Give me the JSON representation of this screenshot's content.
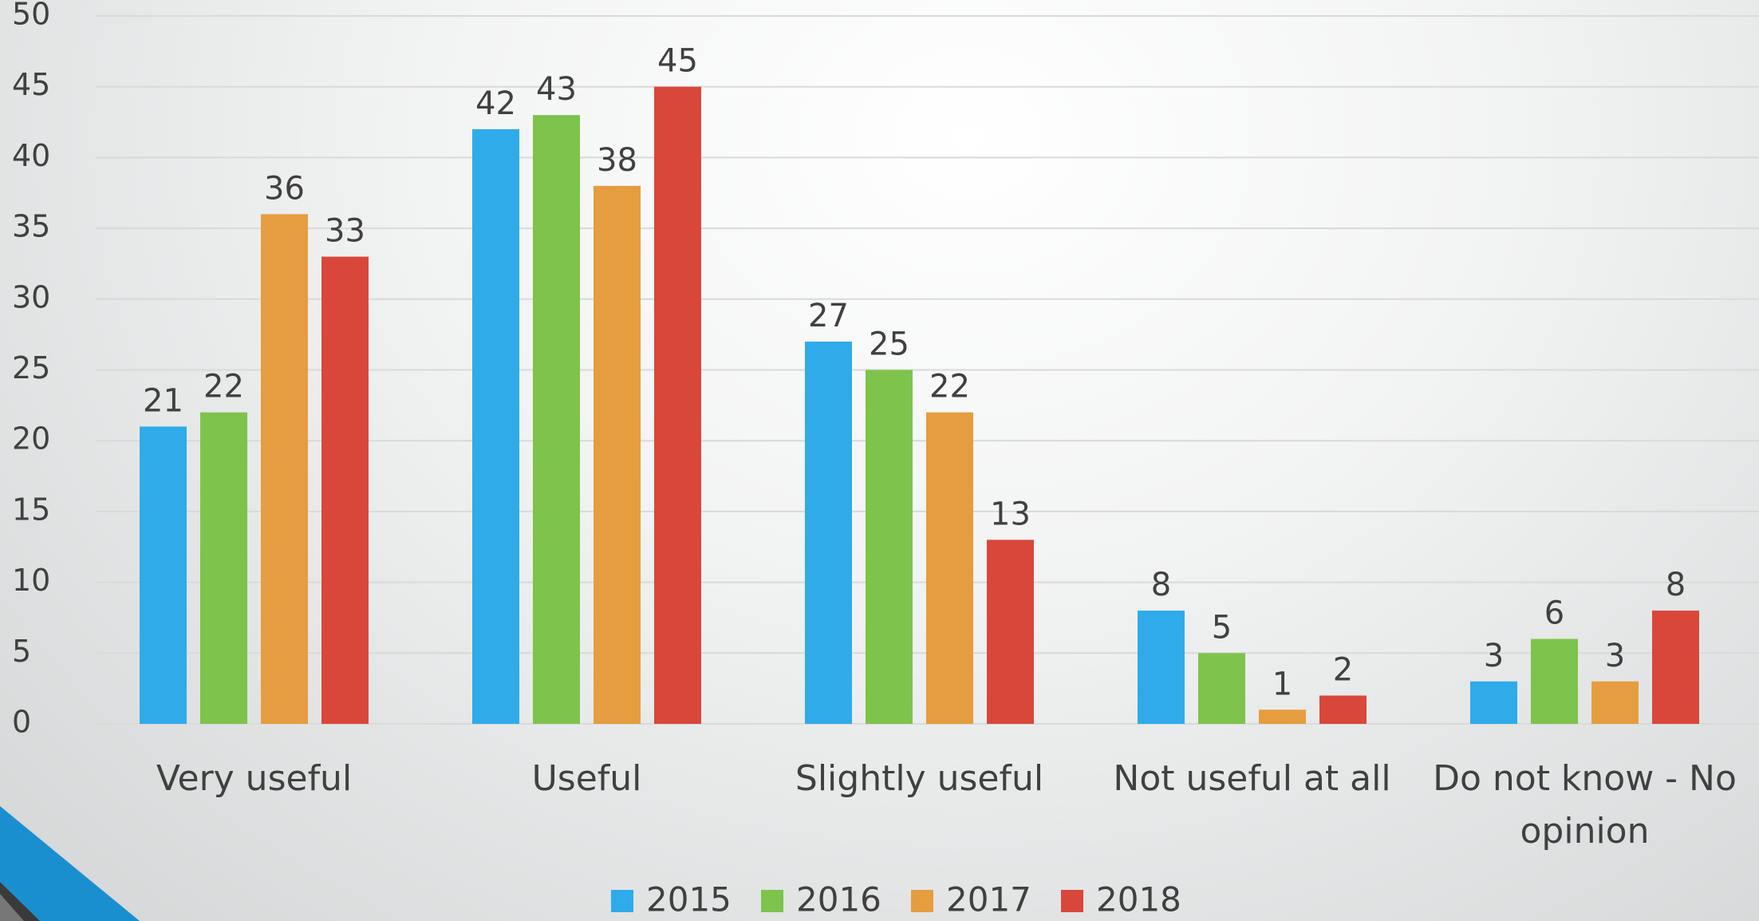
{
  "chart_data": {
    "type": "bar",
    "categories": [
      "Very useful",
      "Useful",
      "Slightly useful",
      "Not useful at all",
      "Do not know - No opinion"
    ],
    "series": [
      {
        "name": "2015",
        "color": "#2fabe9",
        "values": [
          21,
          42,
          27,
          8,
          3
        ]
      },
      {
        "name": "2016",
        "color": "#7ec34b",
        "values": [
          22,
          43,
          25,
          5,
          6
        ]
      },
      {
        "name": "2017",
        "color": "#e59d3f",
        "values": [
          36,
          38,
          22,
          1,
          3
        ]
      },
      {
        "name": "2018",
        "color": "#d9473b",
        "values": [
          33,
          45,
          13,
          2,
          8
        ]
      }
    ],
    "ylim": [
      0,
      50
    ],
    "yticks": [
      0,
      5,
      10,
      15,
      20,
      25,
      30,
      35,
      40,
      45,
      50
    ],
    "grid": true
  }
}
